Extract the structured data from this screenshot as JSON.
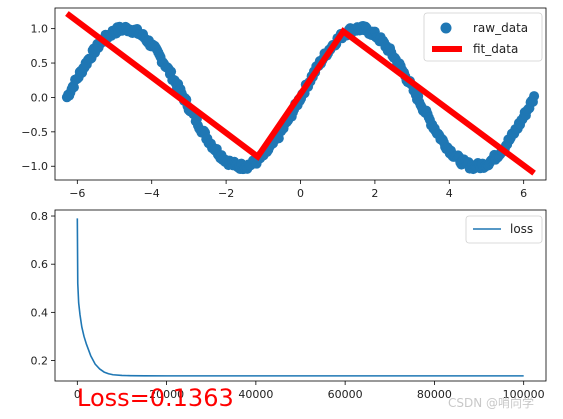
{
  "chart_data": [
    {
      "type": "scatter",
      "xlim": [
        -6.6,
        6.6
      ],
      "ylim": [
        -1.2,
        1.3
      ],
      "xticks": [
        -6,
        -4,
        -2,
        0,
        2,
        4,
        6
      ],
      "xtick_labels": [
        "−6",
        "−4",
        "−2",
        "0",
        "2",
        "4",
        "6"
      ],
      "yticks": [
        -1.0,
        -0.5,
        0.0,
        0.5,
        1.0
      ],
      "ytick_labels": [
        "−1.0",
        "−0.5",
        "0.0",
        "0.5",
        "1.0"
      ],
      "legend_position": "top-right",
      "series": [
        {
          "name": "raw_data",
          "kind": "scatter",
          "color": "#1f77b4",
          "x_range": [
            -6.28,
            6.28
          ],
          "function": "sin",
          "noise_amplitude": 0.05
        },
        {
          "name": "fit_data",
          "kind": "line",
          "color": "#ff0000",
          "x": [
            -6.28,
            -1.15,
            1.15,
            6.28
          ],
          "y": [
            1.22,
            -0.86,
            0.96,
            -1.1
          ]
        }
      ]
    },
    {
      "type": "line",
      "xlim": [
        -5000,
        105000
      ],
      "ylim": [
        0.115,
        0.825
      ],
      "xticks": [
        0,
        20000,
        40000,
        60000,
        80000,
        100000
      ],
      "xtick_labels": [
        "0",
        "20000",
        "40000",
        "60000",
        "80000",
        "100000"
      ],
      "yticks": [
        0.2,
        0.4,
        0.6,
        0.8
      ],
      "ytick_labels": [
        "0.2",
        "0.4",
        "0.6",
        "0.8"
      ],
      "legend_position": "top-right",
      "series": [
        {
          "name": "loss",
          "color": "#1f77b4",
          "x": [
            0,
            100,
            300,
            600,
            1000,
            1500,
            2000,
            3000,
            4000,
            5000,
            6000,
            7000,
            8000,
            10000,
            12000,
            15000,
            20000,
            30000,
            50000,
            70000,
            100000
          ],
          "y": [
            0.79,
            0.52,
            0.44,
            0.39,
            0.34,
            0.3,
            0.27,
            0.22,
            0.185,
            0.165,
            0.152,
            0.145,
            0.141,
            0.138,
            0.137,
            0.1365,
            0.1363,
            0.1363,
            0.1363,
            0.1363,
            0.1363
          ]
        }
      ]
    }
  ],
  "annotation": {
    "loss_text": "Loss=0.1363",
    "color": "#ff0000"
  },
  "watermark": {
    "text": "CSDN @哨向学"
  }
}
